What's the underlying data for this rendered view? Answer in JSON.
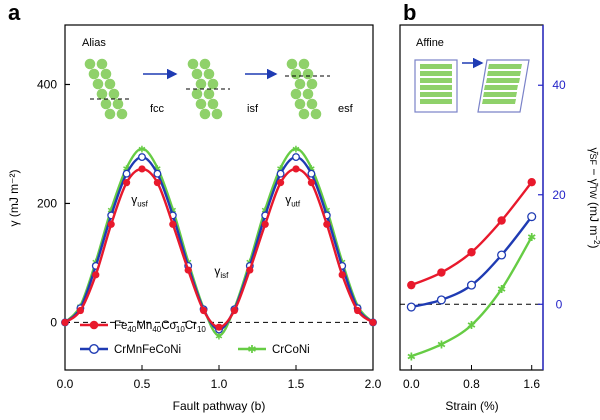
{
  "chart_data": [
    {
      "panel": "a",
      "type": "line",
      "title": "Alias",
      "xlabel": "Fault pathway (b)",
      "ylabel": "γ (mJ m⁻²)",
      "xlim": [
        0,
        2
      ],
      "ylim": [
        -80,
        500
      ],
      "x_ticks": [
        0.0,
        0.5,
        1.0,
        1.5,
        2.0
      ],
      "x_tick_labels": [
        "0.0",
        "0.5",
        "1.0",
        "1.5",
        "2.0"
      ],
      "y_ticks": [
        0,
        200,
        400
      ],
      "y_tick_labels": [
        "0",
        "200",
        "400"
      ],
      "reference_line": {
        "y": 0,
        "style": "dashed"
      },
      "x": [
        0,
        0.1,
        0.2,
        0.3,
        0.4,
        0.5,
        0.6,
        0.7,
        0.8,
        0.9,
        1.0,
        1.1,
        1.2,
        1.3,
        1.4,
        1.5,
        1.6,
        1.7,
        1.8,
        1.9,
        2.0
      ],
      "series": [
        {
          "name": "Fe40Mn40Co10Cr10",
          "legend_main": "Fe",
          "legend_parts": [
            [
              "Fe",
              "40"
            ],
            [
              "Mn",
              "40"
            ],
            [
              "Co",
              "10"
            ],
            [
              "Cr",
              "10"
            ]
          ],
          "color": "#e8192c",
          "marker": "circle-filled",
          "values": [
            0,
            20,
            80,
            165,
            235,
            258,
            235,
            165,
            88,
            20,
            -8,
            20,
            88,
            165,
            235,
            258,
            235,
            165,
            80,
            20,
            0
          ]
        },
        {
          "name": "CrMnFeCoNi",
          "legend_main": "CrMnFeCoNi",
          "color": "#1f3bb3",
          "marker": "circle-open",
          "values": [
            0,
            24,
            95,
            180,
            250,
            278,
            250,
            180,
            95,
            22,
            -12,
            22,
            95,
            180,
            250,
            278,
            250,
            180,
            95,
            24,
            0
          ]
        },
        {
          "name": "CrCoNi",
          "legend_main": "CrCoNi",
          "color": "#66cc44",
          "marker": "star",
          "values": [
            0,
            28,
            102,
            190,
            260,
            292,
            260,
            190,
            102,
            24,
            -22,
            24,
            102,
            190,
            260,
            292,
            260,
            190,
            102,
            28,
            0
          ]
        }
      ],
      "annotations": [
        {
          "id": "usf",
          "main": "γ",
          "sub": "usf",
          "x": 0.43,
          "y": 200
        },
        {
          "id": "isf",
          "main": "γ",
          "sub": "isf",
          "x": 0.97,
          "y": 80
        },
        {
          "id": "utf",
          "main": "γ",
          "sub": "utf",
          "x": 1.43,
          "y": 200
        }
      ],
      "inset_labels": [
        "fcc",
        "isf",
        "esf"
      ]
    },
    {
      "panel": "b",
      "type": "line",
      "title": "Affine",
      "xlabel": "Strain (%)",
      "ylabel": "γ̄SF − γ̄TW (mJ m⁻²)",
      "ylabel_main": "γ̄",
      "ylabel_sub1": "SF",
      "ylabel_mid": " − γ̄",
      "ylabel_sub2": "TW",
      "ylabel_unit": " (mJ m",
      "ylabel_exp": "−2",
      "ylabel_close": ")",
      "xlim": [
        -0.15,
        1.75
      ],
      "ylim": [
        -12,
        51
      ],
      "x_ticks": [
        0.0,
        0.8,
        1.6
      ],
      "x_tick_labels": [
        "0.0",
        "0.8",
        "1.6"
      ],
      "y_ticks": [
        0,
        20,
        40
      ],
      "y_tick_labels": [
        "0",
        "20",
        "40"
      ],
      "y_axis_color": "#2424c8",
      "reference_line": {
        "y": 0,
        "style": "dashed"
      },
      "x": [
        0.0,
        0.4,
        0.8,
        1.2,
        1.6
      ],
      "series": [
        {
          "name": "Fe40Mn40Co10Cr10",
          "color": "#e8192c",
          "marker": "circle-filled",
          "values": [
            3.5,
            5.8,
            9.5,
            15.3,
            22.3
          ]
        },
        {
          "name": "CrMnFeCoNi",
          "color": "#1f3bb3",
          "marker": "circle-open",
          "values": [
            -0.5,
            0.8,
            3.5,
            9.0,
            16.0
          ]
        },
        {
          "name": "CrCoNi",
          "color": "#66cc44",
          "marker": "star",
          "values": [
            -9.5,
            -7.3,
            -3.8,
            2.8,
            12.3
          ]
        }
      ]
    }
  ],
  "panel_labels": {
    "a": "a",
    "b": "b"
  }
}
